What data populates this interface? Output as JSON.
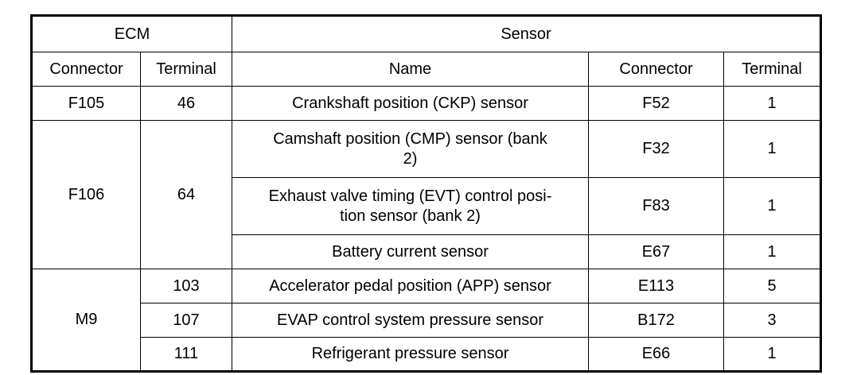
{
  "table": {
    "header_row1": {
      "ecm": "ECM",
      "sensor": "Sensor"
    },
    "header_row2": {
      "ecm_connector": "Connector",
      "ecm_terminal": "Terminal",
      "sensor_name": "Name",
      "sensor_connector": "Connector",
      "sensor_terminal": "Terminal"
    },
    "rows": [
      {
        "ecm_connector": "F105",
        "ecm_terminal": "46",
        "name": "Crankshaft position (CKP) sensor",
        "connector": "F52",
        "terminal": "1"
      },
      {
        "ecm_connector": "F106",
        "ecm_terminal": "64",
        "name": "Camshaft position (CMP) sensor (bank\n2)",
        "connector": "F32",
        "terminal": "1"
      },
      {
        "name": "Exhaust valve timing (EVT) control posi-\ntion sensor (bank 2)",
        "connector": "F83",
        "terminal": "1"
      },
      {
        "name": "Battery current sensor",
        "connector": "E67",
        "terminal": "1"
      },
      {
        "ecm_connector": "M9",
        "ecm_terminal": "103",
        "name": "Accelerator pedal position (APP) sensor",
        "connector": "E113",
        "terminal": "5"
      },
      {
        "ecm_terminal": "107",
        "name": "EVAP control system pressure sensor",
        "connector": "B172",
        "terminal": "3"
      },
      {
        "ecm_terminal": "111",
        "name": "Refrigerant pressure sensor",
        "connector": "E66",
        "terminal": "1"
      }
    ]
  }
}
